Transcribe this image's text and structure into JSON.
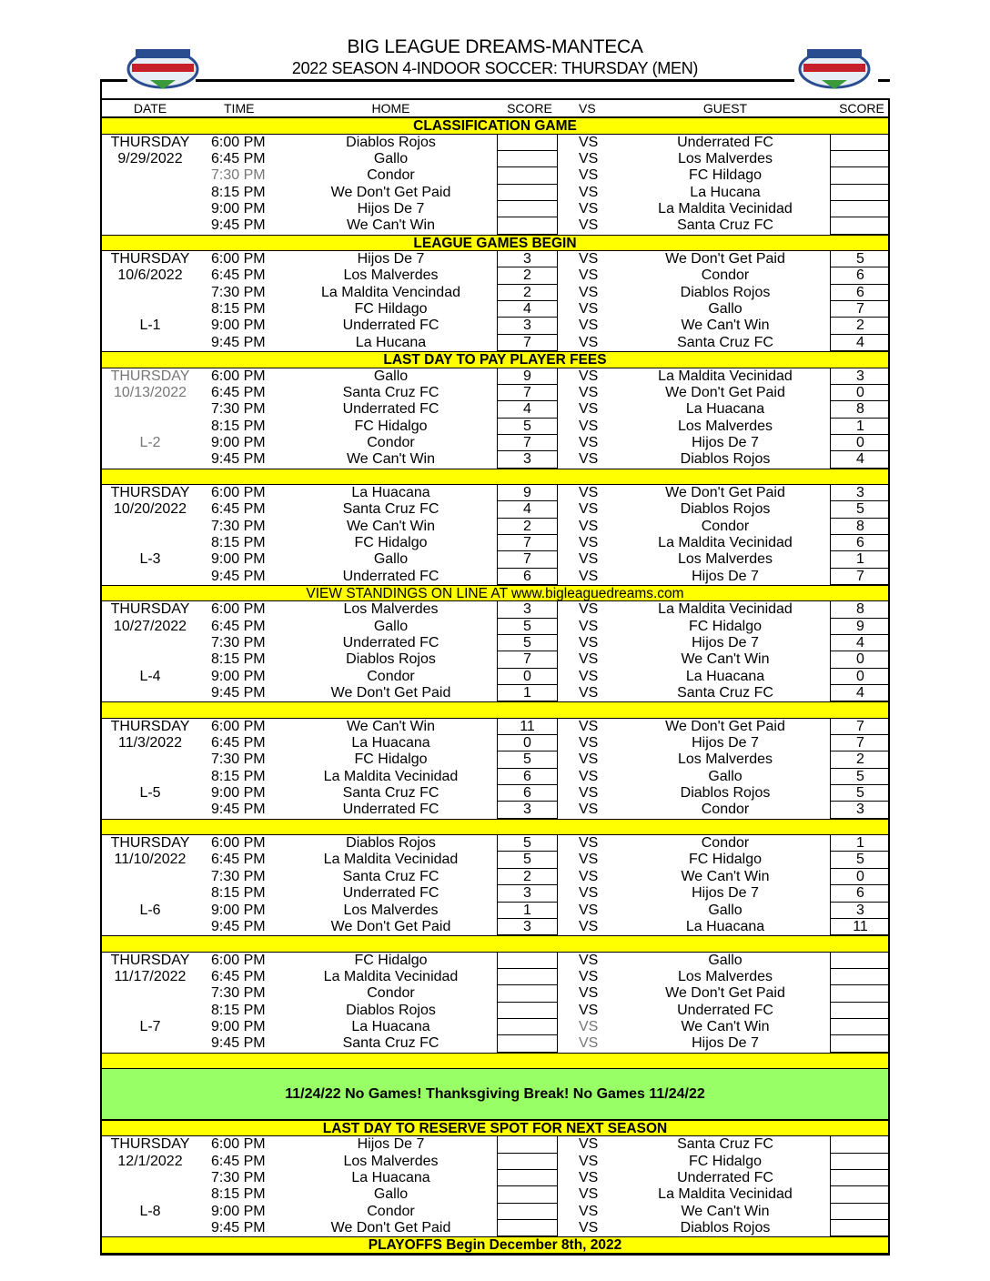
{
  "header": {
    "title": "BIG LEAGUE DREAMS-MANTECA",
    "subtitle": "2022 SEASON 4-INDOOR SOCCER: THURSDAY (MEN)",
    "logo_text": "BIG LEAGUE DREAMS"
  },
  "columns": {
    "date": "DATE",
    "time": "TIME",
    "home": "HOME",
    "score": "SCORE",
    "vs": "VS",
    "guest": "GUEST",
    "score2": "SCORE"
  },
  "colors": {
    "banner": "#ffff00",
    "break": "#99ff66"
  },
  "sections": [
    {
      "type": "banner",
      "text": "CLASSIFICATION GAME"
    },
    {
      "type": "games",
      "day": "THURSDAY",
      "date": "9/29/2022",
      "label": "",
      "games": [
        [
          "6:00 PM",
          "Diablos Rojos",
          "",
          "Underrated FC",
          ""
        ],
        [
          "6:45 PM",
          "Gallo",
          "",
          "Los Malverdes",
          ""
        ],
        [
          "7:30 PM",
          "Condor",
          "",
          "FC Hildago",
          ""
        ],
        [
          "8:15 PM",
          "We Don't Get Paid",
          "",
          "La Hucana",
          ""
        ],
        [
          "9:00 PM",
          "Hijos De 7",
          "",
          "La Maldita Vecinidad",
          ""
        ],
        [
          "9:45 PM",
          "We Can't Win",
          "",
          "Santa Cruz FC",
          ""
        ]
      ]
    },
    {
      "type": "banner",
      "text": "LEAGUE GAMES BEGIN"
    },
    {
      "type": "games",
      "day": "THURSDAY",
      "date": "10/6/2022",
      "label": "L-1",
      "games": [
        [
          "6:00 PM",
          "Hijos De 7",
          "3",
          "We Don't Get Paid",
          "5"
        ],
        [
          "6:45 PM",
          "Los Malverdes",
          "2",
          "Condor",
          "6"
        ],
        [
          "7:30 PM",
          "La Maldita Vencindad",
          "2",
          "Diablos Rojos",
          "6"
        ],
        [
          "8:15 PM",
          "FC Hildago",
          "4",
          "Gallo",
          "7"
        ],
        [
          "9:00 PM",
          "Underrated FC",
          "3",
          "We Can't Win",
          "2"
        ],
        [
          "9:45 PM",
          "La Hucana",
          "7",
          "Santa Cruz FC",
          "4"
        ]
      ]
    },
    {
      "type": "banner",
      "text": "LAST DAY TO PAY PLAYER FEES"
    },
    {
      "type": "games",
      "day": "THURSDAY",
      "date": "10/13/2022",
      "label": "L-2",
      "games": [
        [
          "6:00 PM",
          "Gallo",
          "9",
          "La Maldita Vecinidad",
          "3"
        ],
        [
          "6:45 PM",
          "Santa Cruz FC",
          "7",
          "We Don't Get Paid",
          "0"
        ],
        [
          "7:30 PM",
          "Underrated FC",
          "4",
          "La Huacana",
          "8"
        ],
        [
          "8:15 PM",
          "FC Hidalgo",
          "5",
          "Los Malverdes",
          "1"
        ],
        [
          "9:00 PM",
          "Condor",
          "7",
          "Hijos De 7",
          "0"
        ],
        [
          "9:45 PM",
          "We Can't Win",
          "3",
          "Diablos Rojos",
          "4"
        ]
      ]
    },
    {
      "type": "banner",
      "text": ""
    },
    {
      "type": "games",
      "day": "THURSDAY",
      "date": "10/20/2022",
      "label": "L-3",
      "games": [
        [
          "6:00 PM",
          "La Huacana",
          "9",
          "We Don't Get Paid",
          "3"
        ],
        [
          "6:45 PM",
          "Santa Cruz FC",
          "4",
          "Diablos Rojos",
          "5"
        ],
        [
          "7:30 PM",
          "We Can't Win",
          "2",
          "Condor",
          "8"
        ],
        [
          "8:15 PM",
          "FC Hidalgo",
          "7",
          "La Maldita Vecinidad",
          "6"
        ],
        [
          "9:00 PM",
          "Gallo",
          "7",
          "Los Malverdes",
          "1"
        ],
        [
          "9:45 PM",
          "Underrated FC",
          "6",
          "Hijos De 7",
          "7"
        ]
      ]
    },
    {
      "type": "banner",
      "text": "VIEW STANDINGS ON LINE AT www.bigleaguedreams.com",
      "plain": true
    },
    {
      "type": "games",
      "day": "THURSDAY",
      "date": "10/27/2022",
      "label": "L-4",
      "games": [
        [
          "6:00 PM",
          "Los Malverdes",
          "3",
          "La Maldita Vecinidad",
          "8"
        ],
        [
          "6:45 PM",
          "Gallo",
          "5",
          "FC Hidalgo",
          "9"
        ],
        [
          "7:30 PM",
          "Underrated FC",
          "5",
          "Hijos De 7",
          "4"
        ],
        [
          "8:15 PM",
          "Diablos Rojos",
          "7",
          "We Can't Win",
          "0"
        ],
        [
          "9:00 PM",
          "Condor",
          "0",
          "La Huacana",
          "0"
        ],
        [
          "9:45 PM",
          "We Don't Get Paid",
          "1",
          "Santa Cruz FC",
          "4"
        ]
      ]
    },
    {
      "type": "banner",
      "text": ""
    },
    {
      "type": "games",
      "day": "THURSDAY",
      "date": "11/3/2022",
      "label": "L-5",
      "games": [
        [
          "6:00 PM",
          "We Can't Win",
          "11",
          "We Don't Get Paid",
          "7"
        ],
        [
          "6:45 PM",
          "La Huacana",
          "0",
          "Hijos De 7",
          "7"
        ],
        [
          "7:30 PM",
          "FC Hidalgo",
          "5",
          "Los Malverdes",
          "2"
        ],
        [
          "8:15 PM",
          "La Maldita Vecinidad",
          "6",
          "Gallo",
          "5"
        ],
        [
          "9:00 PM",
          "Santa Cruz FC",
          "6",
          "Diablos Rojos",
          "5"
        ],
        [
          "9:45 PM",
          "Underrated FC",
          "3",
          "Condor",
          "3"
        ]
      ]
    },
    {
      "type": "banner",
      "text": ""
    },
    {
      "type": "games",
      "day": "THURSDAY",
      "date": "11/10/2022",
      "label": "L-6",
      "games": [
        [
          "6:00 PM",
          "Diablos Rojos",
          "5",
          "Condor",
          "1"
        ],
        [
          "6:45 PM",
          "La Maldita Vecinidad",
          "5",
          "FC Hidalgo",
          "5"
        ],
        [
          "7:30 PM",
          "Santa Cruz FC",
          "2",
          "We Can't Win",
          "0"
        ],
        [
          "8:15 PM",
          "Underrated FC",
          "3",
          "Hijos De 7",
          "6"
        ],
        [
          "9:00 PM",
          "Los Malverdes",
          "1",
          "Gallo",
          "3"
        ],
        [
          "9:45 PM",
          "We Don't Get Paid",
          "3",
          "La Huacana",
          "11"
        ]
      ]
    },
    {
      "type": "banner",
      "text": ""
    },
    {
      "type": "games",
      "day": "THURSDAY",
      "date": "11/17/2022",
      "label": "L-7",
      "games": [
        [
          "6:00 PM",
          "FC Hidalgo",
          "",
          "Gallo",
          ""
        ],
        [
          "6:45 PM",
          "La Maldita Vecinidad",
          "",
          "Los Malverdes",
          ""
        ],
        [
          "7:30 PM",
          "Condor",
          "",
          "We Don't Get Paid",
          ""
        ],
        [
          "8:15 PM",
          "Diablos Rojos",
          "",
          "Underrated FC",
          ""
        ],
        [
          "9:00 PM",
          "La Huacana",
          "",
          "We Can't Win",
          ""
        ],
        [
          "9:45 PM",
          "Santa Cruz FC",
          "",
          "Hijos De 7",
          ""
        ]
      ]
    },
    {
      "type": "banner",
      "text": ""
    },
    {
      "type": "break",
      "text": "11/24/22 No Games! Thanksgiving Break! No Games 11/24/22"
    },
    {
      "type": "banner",
      "text": "LAST DAY TO RESERVE SPOT FOR NEXT SEASON"
    },
    {
      "type": "games",
      "day": "THURSDAY",
      "date": "12/1/2022",
      "label": "L-8",
      "games": [
        [
          "6:00 PM",
          "Hijos De 7",
          "",
          "Santa Cruz FC",
          ""
        ],
        [
          "6:45 PM",
          "Los Malverdes",
          "",
          "FC Hidalgo",
          ""
        ],
        [
          "7:30 PM",
          "La Huacana",
          "",
          "Underrated FC",
          ""
        ],
        [
          "8:15 PM",
          "Gallo",
          "",
          "La Maldita Vecinidad",
          ""
        ],
        [
          "9:00 PM",
          "Condor",
          "",
          "We Can't Win",
          ""
        ],
        [
          "9:45 PM",
          "We Don't Get Paid",
          "",
          "Diablos Rojos",
          ""
        ]
      ]
    },
    {
      "type": "banner",
      "text": "PLAYOFFS Begin December 8th, 2022"
    }
  ],
  "vs_label": "VS"
}
